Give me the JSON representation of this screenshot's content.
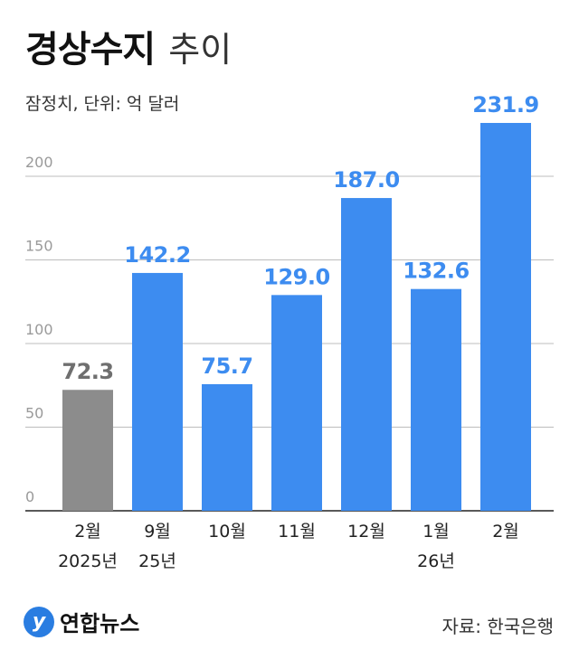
{
  "header": {
    "title": "경상수지",
    "title_suffix": "추이",
    "subtitle": "잠정치, 단위: 억 달러"
  },
  "footer": {
    "logo_text": "연합뉴스",
    "logo_icon": "yonhap-logo-icon",
    "source": "자료: 한국은행"
  },
  "colors": {
    "bar_primary": "#3d8cf0",
    "bar_first": "#8c8c8c",
    "label_primary": "#3d8cf0",
    "label_first": "#6f6f6f",
    "grid": "#bdbdbd",
    "axis": "#222222"
  },
  "chart_data": {
    "type": "bar",
    "categories": [
      "2월 2025년",
      "9월 25년",
      "10월",
      "11월",
      "12월",
      "1월 26년",
      "2월"
    ],
    "category_lines": [
      [
        "2월",
        "2025년"
      ],
      [
        "9월",
        "25년"
      ],
      [
        "10월"
      ],
      [
        "11월"
      ],
      [
        "12월"
      ],
      [
        "1월",
        "26년"
      ],
      [
        "2월"
      ]
    ],
    "values": [
      72.3,
      142.2,
      75.7,
      129.0,
      187.0,
      132.6,
      231.9
    ],
    "value_labels": [
      "72.3",
      "142.2",
      "75.7",
      "129.0",
      "187.0",
      "132.6",
      "231.9"
    ],
    "yticks": [
      0,
      50,
      100,
      150,
      200
    ],
    "ylim": [
      0,
      250
    ],
    "grid": true,
    "highlight_first_bar": true
  }
}
